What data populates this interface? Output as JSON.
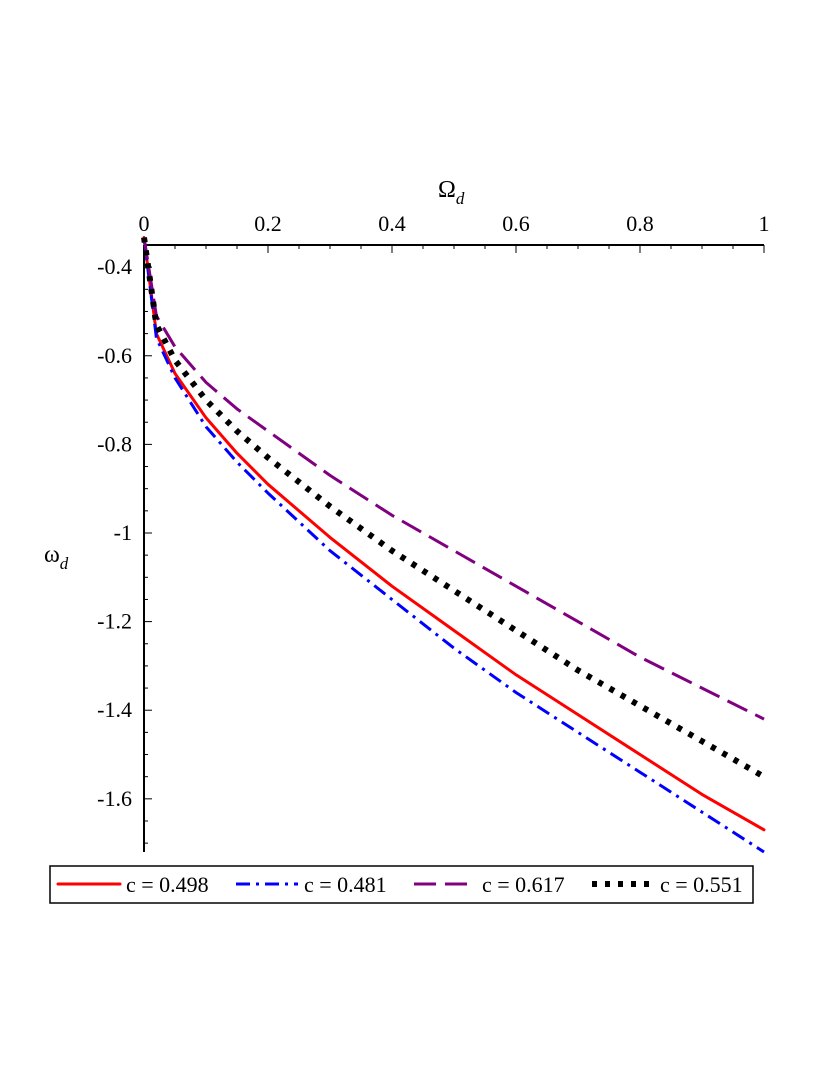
{
  "chart_data": {
    "type": "line",
    "xlabel": "Ω",
    "xlabel_sub": "d",
    "ylabel": "ω",
    "ylabel_sub": "d",
    "xlim": [
      0,
      1
    ],
    "ylim": [
      -1.72,
      -0.35
    ],
    "x_ticks": [
      0,
      0.2,
      0.4,
      0.6,
      0.8,
      1
    ],
    "x_tick_labels": [
      "0",
      "0.2",
      "0.4",
      "0.6",
      "0.8",
      "1"
    ],
    "y_ticks": [
      -0.4,
      -0.6,
      -0.8,
      -1,
      -1.2,
      -1.4,
      -1.6
    ],
    "y_tick_labels": [
      "-0.4",
      "-0.6",
      "-0.8",
      "-1",
      "-1.2",
      "-1.4",
      "-1.6"
    ],
    "x_axis_position": "top",
    "grid": false,
    "legend_position": "bottom",
    "x": [
      0,
      0.02,
      0.05,
      0.1,
      0.15,
      0.2,
      0.3,
      0.4,
      0.5,
      0.6,
      0.7,
      0.8,
      0.9,
      1.0
    ],
    "series": [
      {
        "name": "c = 0.498",
        "color": "#ff0000",
        "dash": "solid",
        "values": [
          -0.333,
          -0.55,
          -0.64,
          -0.74,
          -0.82,
          -0.89,
          -1.01,
          -1.12,
          -1.22,
          -1.32,
          -1.41,
          -1.5,
          -1.59,
          -1.67
        ]
      },
      {
        "name": "c = 0.481",
        "color": "#0000ff",
        "dash": "dashdot",
        "values": [
          -0.333,
          -0.56,
          -0.65,
          -0.76,
          -0.84,
          -0.91,
          -1.04,
          -1.15,
          -1.26,
          -1.36,
          -1.45,
          -1.54,
          -1.63,
          -1.72
        ]
      },
      {
        "name": "c = 0.617",
        "color": "#800080",
        "dash": "dash",
        "values": [
          -0.333,
          -0.51,
          -0.58,
          -0.66,
          -0.72,
          -0.77,
          -0.87,
          -0.96,
          -1.04,
          -1.12,
          -1.2,
          -1.28,
          -1.35,
          -1.42
        ]
      },
      {
        "name": "c = 0.551",
        "color": "#000000",
        "dash": "dot",
        "values": [
          -0.333,
          -0.53,
          -0.61,
          -0.7,
          -0.77,
          -0.83,
          -0.94,
          -1.04,
          -1.13,
          -1.22,
          -1.31,
          -1.39,
          -1.47,
          -1.55
        ]
      }
    ]
  }
}
